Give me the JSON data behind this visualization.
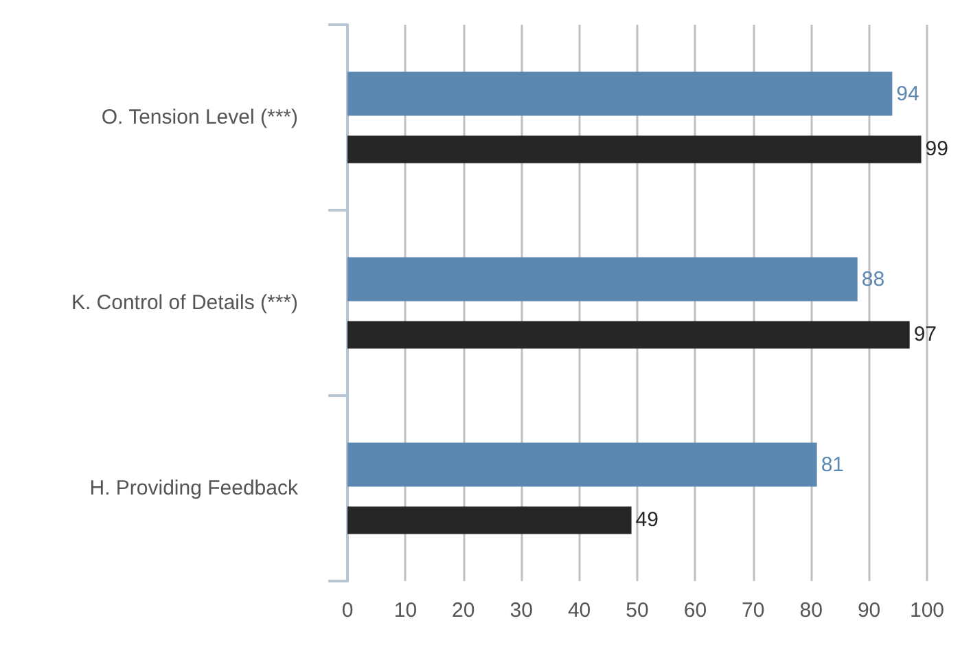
{
  "chart_data": {
    "type": "bar",
    "orientation": "horizontal",
    "categories": [
      "O. Tension Level (***)",
      "K. Control of Details (***)",
      "H. Providing Feedback"
    ],
    "series": [
      {
        "color": "#5b87b0",
        "values": [
          94,
          88,
          81
        ]
      },
      {
        "color": "#262626",
        "values": [
          99,
          97,
          49
        ]
      }
    ],
    "xlim": [
      0,
      100
    ],
    "xticks": [
      0,
      10,
      20,
      30,
      40,
      50,
      60,
      70,
      80,
      90,
      100
    ],
    "grid": "x",
    "data_labels": true
  }
}
